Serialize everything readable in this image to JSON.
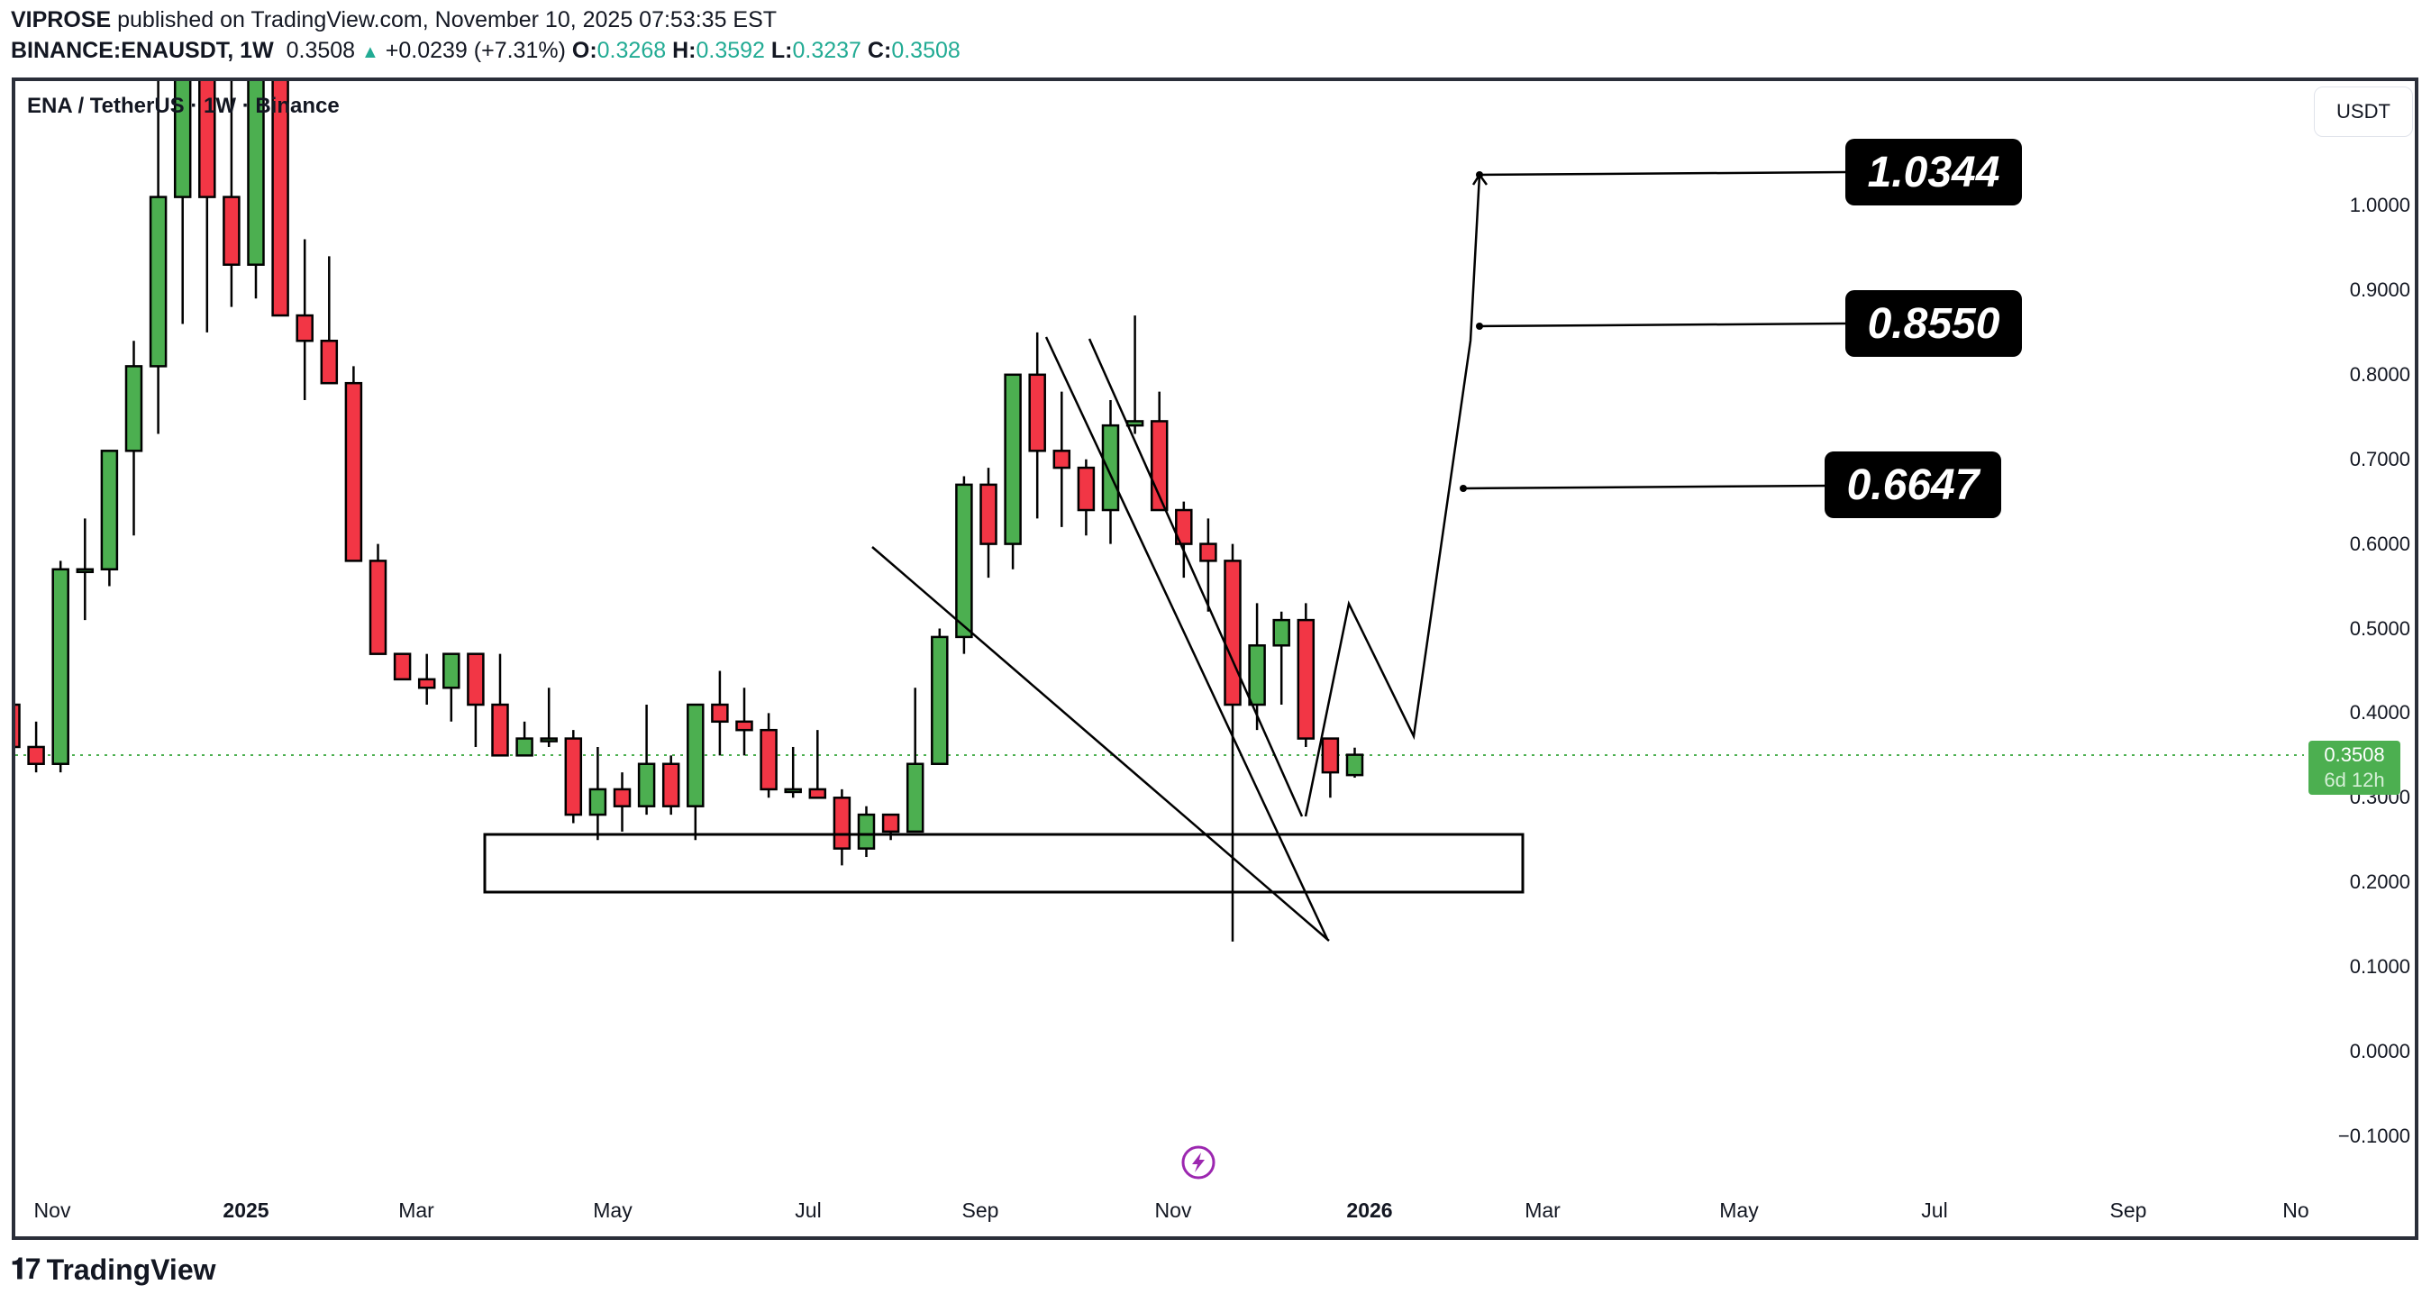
{
  "header": {
    "author": "VIPROSE",
    "published_text": "published on TradingView.com, November 10, 2025 07:53:35 EST",
    "symbol": "BINANCE:ENAUSDT, 1W",
    "last": "0.3508",
    "change": "+0.0239 (+7.31%)",
    "o_label": "O:",
    "o": "0.3268",
    "h_label": "H:",
    "h": "0.3592",
    "l_label": "L:",
    "l": "0.3237",
    "c_label": "C:",
    "c": "0.3508"
  },
  "legend": "ENA / TetherUS · 1W · Binance",
  "unit_button": "USDT",
  "price_tag": {
    "price": "0.3508",
    "countdown": "6d 12h"
  },
  "targets": [
    "1.0344",
    "0.8550",
    "0.6647"
  ],
  "brand": "TradingView",
  "colors": {
    "up": "#4caf50",
    "down": "#f23645",
    "accent": "#22ab94",
    "marker": "#9c27b0"
  },
  "chart_data": {
    "type": "candlestick",
    "title": "ENA / TetherUS · 1W · Binance",
    "xlabel": "",
    "ylabel": "USDT",
    "ylim": [
      -0.13,
      1.1
    ],
    "y_ticks": [
      "1.0000",
      "0.9000",
      "0.8000",
      "0.7000",
      "0.6000",
      "0.5000",
      "0.4000",
      "0.3000",
      "0.2000",
      "0.1000",
      "0.0000",
      "-0.1000"
    ],
    "x_ticks": [
      "Nov",
      "2025",
      "Mar",
      "May",
      "Jul",
      "Sep",
      "Nov",
      "2026",
      "Mar",
      "May",
      "Jul",
      "Sep",
      "No"
    ],
    "last_price": 0.3508,
    "candles": [
      {
        "o": 0.41,
        "h": 0.42,
        "l": 0.36,
        "c": 0.36
      },
      {
        "o": 0.36,
        "h": 0.39,
        "l": 0.33,
        "c": 0.34
      },
      {
        "o": 0.34,
        "h": 0.58,
        "l": 0.33,
        "c": 0.57
      },
      {
        "o": 0.57,
        "h": 0.63,
        "l": 0.51,
        "c": 0.57
      },
      {
        "o": 0.57,
        "h": 0.7,
        "l": 0.55,
        "c": 0.71
      },
      {
        "o": 0.71,
        "h": 0.84,
        "l": 0.61,
        "c": 0.81
      },
      {
        "o": 0.81,
        "h": 1.2,
        "l": 0.73,
        "c": 1.01
      },
      {
        "o": 1.01,
        "h": 1.25,
        "l": 0.86,
        "c": 1.18
      },
      {
        "o": 1.18,
        "h": 1.25,
        "l": 0.85,
        "c": 1.01
      },
      {
        "o": 1.01,
        "h": 1.16,
        "l": 0.88,
        "c": 0.93
      },
      {
        "o": 0.93,
        "h": 1.2,
        "l": 0.89,
        "c": 1.15
      },
      {
        "o": 1.15,
        "h": 1.2,
        "l": 0.87,
        "c": 0.87
      },
      {
        "o": 0.87,
        "h": 0.96,
        "l": 0.77,
        "c": 0.84
      },
      {
        "o": 0.84,
        "h": 0.94,
        "l": 0.82,
        "c": 0.79
      },
      {
        "o": 0.79,
        "h": 0.81,
        "l": 0.68,
        "c": 0.58
      },
      {
        "o": 0.58,
        "h": 0.6,
        "l": 0.53,
        "c": 0.47
      },
      {
        "o": 0.47,
        "h": 0.47,
        "l": 0.44,
        "c": 0.44
      },
      {
        "o": 0.44,
        "h": 0.47,
        "l": 0.41,
        "c": 0.43
      },
      {
        "o": 0.43,
        "h": 0.47,
        "l": 0.39,
        "c": 0.47
      },
      {
        "o": 0.47,
        "h": 0.47,
        "l": 0.36,
        "c": 0.41
      },
      {
        "o": 0.41,
        "h": 0.47,
        "l": 0.35,
        "c": 0.35
      },
      {
        "o": 0.35,
        "h": 0.39,
        "l": 0.35,
        "c": 0.37
      },
      {
        "o": 0.37,
        "h": 0.43,
        "l": 0.36,
        "c": 0.37
      },
      {
        "o": 0.37,
        "h": 0.38,
        "l": 0.27,
        "c": 0.28
      },
      {
        "o": 0.28,
        "h": 0.36,
        "l": 0.25,
        "c": 0.31
      },
      {
        "o": 0.31,
        "h": 0.33,
        "l": 0.26,
        "c": 0.29
      },
      {
        "o": 0.29,
        "h": 0.41,
        "l": 0.28,
        "c": 0.34
      },
      {
        "o": 0.34,
        "h": 0.35,
        "l": 0.28,
        "c": 0.29
      },
      {
        "o": 0.29,
        "h": 0.41,
        "l": 0.25,
        "c": 0.41
      },
      {
        "o": 0.41,
        "h": 0.45,
        "l": 0.35,
        "c": 0.39
      },
      {
        "o": 0.39,
        "h": 0.43,
        "l": 0.35,
        "c": 0.38
      },
      {
        "o": 0.38,
        "h": 0.4,
        "l": 0.3,
        "c": 0.31
      },
      {
        "o": 0.31,
        "h": 0.36,
        "l": 0.3,
        "c": 0.31
      },
      {
        "o": 0.31,
        "h": 0.38,
        "l": 0.3,
        "c": 0.3
      },
      {
        "o": 0.3,
        "h": 0.31,
        "l": 0.22,
        "c": 0.24
      },
      {
        "o": 0.24,
        "h": 0.29,
        "l": 0.23,
        "c": 0.28
      },
      {
        "o": 0.28,
        "h": 0.28,
        "l": 0.25,
        "c": 0.26
      },
      {
        "o": 0.26,
        "h": 0.43,
        "l": 0.26,
        "c": 0.34
      },
      {
        "o": 0.34,
        "h": 0.5,
        "l": 0.34,
        "c": 0.49
      },
      {
        "o": 0.49,
        "h": 0.68,
        "l": 0.47,
        "c": 0.67
      },
      {
        "o": 0.67,
        "h": 0.69,
        "l": 0.56,
        "c": 0.6
      },
      {
        "o": 0.6,
        "h": 0.8,
        "l": 0.57,
        "c": 0.8
      },
      {
        "o": 0.8,
        "h": 0.85,
        "l": 0.63,
        "c": 0.71
      },
      {
        "o": 0.71,
        "h": 0.78,
        "l": 0.62,
        "c": 0.69
      },
      {
        "o": 0.69,
        "h": 0.7,
        "l": 0.61,
        "c": 0.64
      },
      {
        "o": 0.64,
        "h": 0.77,
        "l": 0.6,
        "c": 0.74
      },
      {
        "o": 0.74,
        "h": 0.87,
        "l": 0.73,
        "c": 0.745
      },
      {
        "o": 0.745,
        "h": 0.78,
        "l": 0.64,
        "c": 0.64
      },
      {
        "o": 0.64,
        "h": 0.65,
        "l": 0.56,
        "c": 0.6
      },
      {
        "o": 0.6,
        "h": 0.63,
        "l": 0.52,
        "c": 0.58
      },
      {
        "o": 0.58,
        "h": 0.6,
        "l": 0.13,
        "c": 0.41
      },
      {
        "o": 0.41,
        "h": 0.53,
        "l": 0.38,
        "c": 0.48
      },
      {
        "o": 0.48,
        "h": 0.52,
        "l": 0.41,
        "c": 0.51
      },
      {
        "o": 0.51,
        "h": 0.53,
        "l": 0.36,
        "c": 0.37
      },
      {
        "o": 0.37,
        "h": 0.37,
        "l": 0.3,
        "c": 0.33
      },
      {
        "o": 0.3268,
        "h": 0.3592,
        "l": 0.3237,
        "c": 0.3508
      }
    ],
    "annotations": {
      "support_box": {
        "top": 0.258,
        "bottom": 0.188
      },
      "target_levels": [
        1.0344,
        0.855,
        0.6647
      ],
      "projected_path": [
        0.27,
        0.53,
        0.37,
        1.03
      ]
    }
  }
}
